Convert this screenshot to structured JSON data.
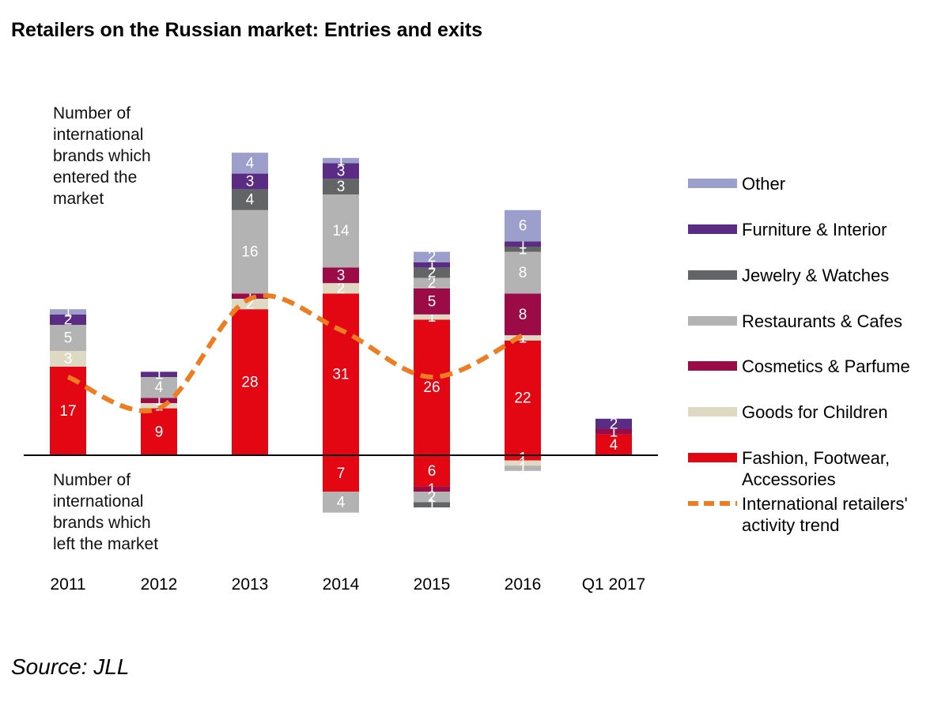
{
  "title": "Retailers on the Russian market: Entries and exits",
  "source": "Source: JLL",
  "annotations": {
    "entered": "Number of\ninternational\nbrands which\nentered the\nmarket",
    "left": "Number of\ninternational\nbrands which\nleft the market"
  },
  "chart_data": {
    "type": "bar",
    "stacked": true,
    "categories": [
      "2011",
      "2012",
      "2013",
      "2014",
      "2015",
      "2016",
      "Q1 2017"
    ],
    "series": [
      {
        "name": "Fashion, Footwear, Accessories",
        "color": "#e30613",
        "entries": [
          17,
          9,
          28,
          31,
          26,
          22,
          4
        ],
        "exits": [
          0,
          0,
          0,
          7,
          6,
          1,
          0
        ]
      },
      {
        "name": "Goods for Children",
        "color": "#ddd9c3",
        "entries": [
          3,
          1,
          2,
          2,
          1,
          1,
          0
        ],
        "exits": [
          0,
          0,
          0,
          0,
          0,
          1,
          0
        ]
      },
      {
        "name": "Cosmetics & Parfume",
        "color": "#9b0b45",
        "entries": [
          0,
          1,
          1,
          3,
          5,
          8,
          1
        ],
        "exits": [
          0,
          0,
          0,
          0,
          1,
          0,
          0
        ]
      },
      {
        "name": "Restaurants & Cafes",
        "color": "#b3b3b3",
        "entries": [
          5,
          4,
          16,
          14,
          2,
          8,
          0
        ],
        "exits": [
          0,
          0,
          0,
          4,
          2,
          1,
          0
        ]
      },
      {
        "name": "Jewelry & Watches",
        "color": "#636466",
        "entries": [
          0,
          0,
          4,
          3,
          2,
          1,
          0
        ],
        "exits": [
          0,
          0,
          0,
          0,
          1,
          0,
          0
        ]
      },
      {
        "name": "Furniture & Interior",
        "color": "#5b2c83",
        "entries": [
          2,
          1,
          3,
          3,
          1,
          1,
          2
        ],
        "exits": [
          0,
          0,
          0,
          0,
          0,
          0,
          0
        ]
      },
      {
        "name": "Other",
        "color": "#9c9fcc",
        "entries": [
          1,
          0,
          4,
          1,
          2,
          6,
          0
        ],
        "exits": [
          0,
          0,
          0,
          0,
          0,
          0,
          0
        ]
      }
    ],
    "trend": {
      "name": "International retailers' activity trend",
      "color": "#ec7d22",
      "values": [
        15,
        9,
        30,
        24,
        15,
        23
      ]
    },
    "legend_position": "right",
    "grid": false
  }
}
